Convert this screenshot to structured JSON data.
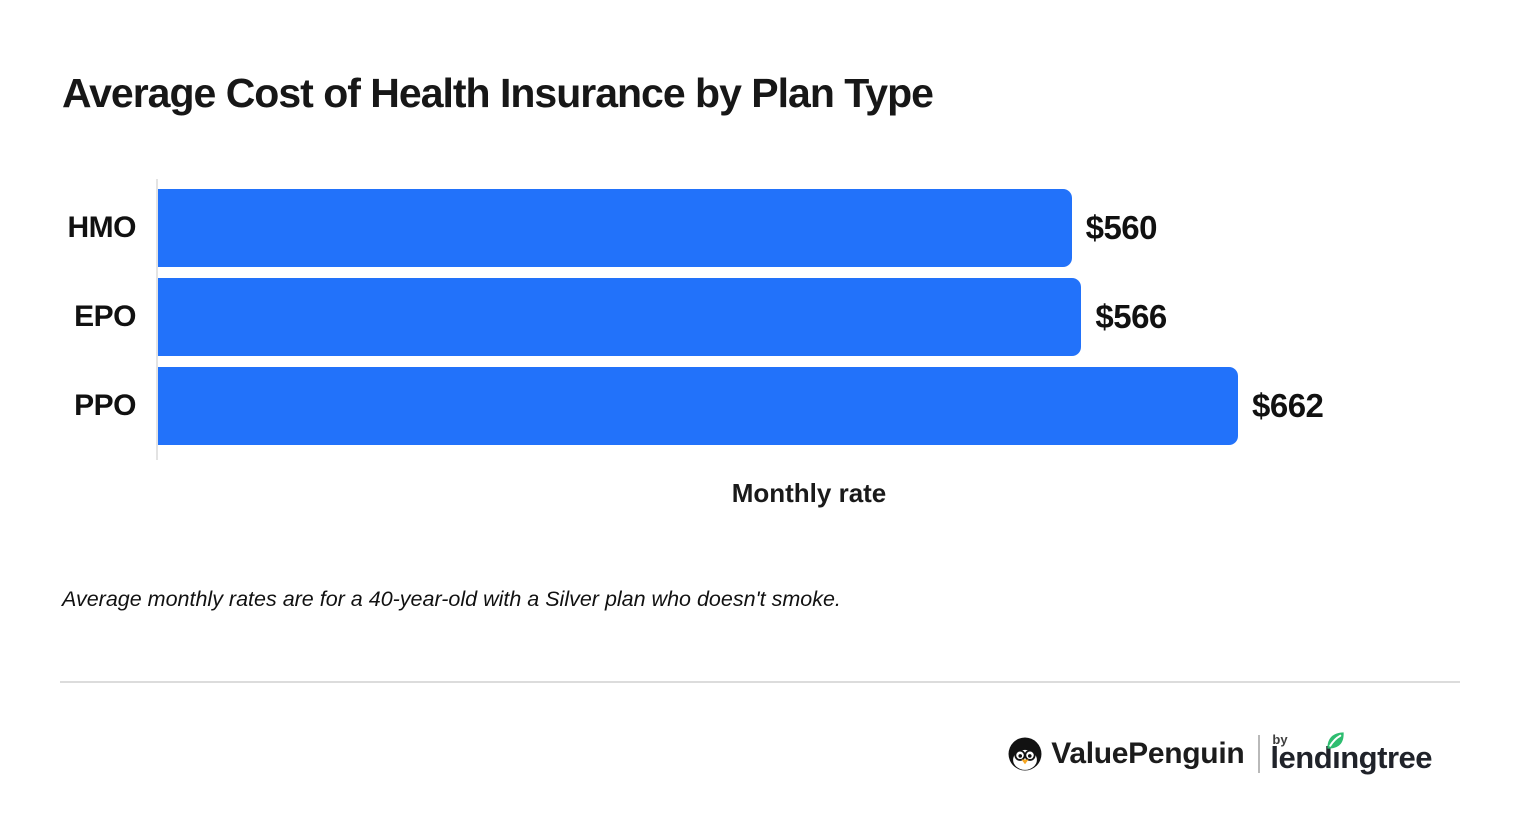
{
  "title": "Average Cost of Health Insurance by Plan Type",
  "chart_data": {
    "type": "bar",
    "orientation": "horizontal",
    "categories": [
      "HMO",
      "EPO",
      "PPO"
    ],
    "values": [
      560,
      566,
      662
    ],
    "value_labels": [
      "$560",
      "$566",
      "$662"
    ],
    "title": "Average Cost of Health Insurance by Plan Type",
    "xlabel": "Monthly rate",
    "ylabel": "",
    "xlim": [
      0,
      662
    ],
    "bar_color": "#2272FA",
    "grid": false,
    "legend": false
  },
  "footnote": "Average monthly rates are for a 40-year-old with a Silver plan who doesn't smoke.",
  "footer": {
    "valuepenguin_brand": "ValuePenguin",
    "by_label": "by",
    "lendingtree_brand": "lendingtree",
    "leaf_color": "#2EBD70",
    "penguin_beak_color": "#F5A623"
  }
}
